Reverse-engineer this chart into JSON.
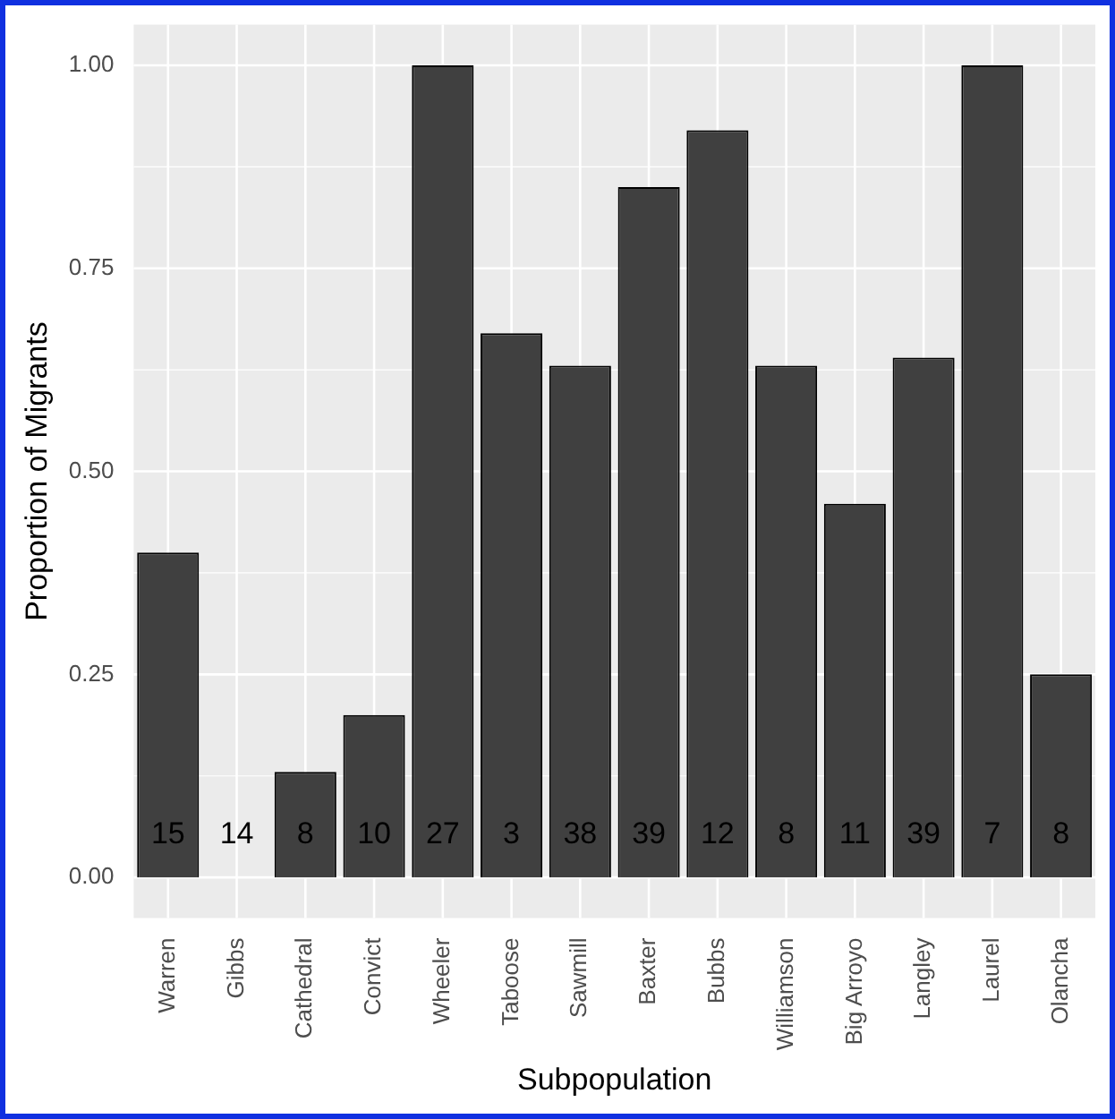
{
  "chart_data": {
    "type": "bar",
    "xlabel": "Subpopulation",
    "ylabel": "Proportion of Migrants",
    "categories": [
      "Warren",
      "Gibbs",
      "Cathedral",
      "Convict",
      "Wheeler",
      "Taboose",
      "Sawmill",
      "Baxter",
      "Bubbs",
      "Williamson",
      "Big Arroyo",
      "Langley",
      "Laurel",
      "Olancha"
    ],
    "values": [
      0.4,
      0,
      0.13,
      0.2,
      1.0,
      0.67,
      0.63,
      0.85,
      0.92,
      0.63,
      0.46,
      0.64,
      1.0,
      0.25
    ],
    "color": "#404040",
    "ylim": [
      -0.05,
      1.05
    ],
    "yticks": [
      {
        "value": 0,
        "label": "0.00"
      },
      {
        "value": 0.25,
        "label": "0.25"
      },
      {
        "value": 0.5,
        "label": "0.50"
      },
      {
        "value": 0.75,
        "label": "0.75"
      },
      {
        "value": 1,
        "label": "1.00"
      }
    ],
    "grid": true,
    "legend": false,
    "annotations": [
      "15",
      "14",
      "8",
      "10",
      "27",
      "3",
      "38",
      "39",
      "12",
      "8",
      "11",
      "39",
      "7",
      "8"
    ]
  }
}
